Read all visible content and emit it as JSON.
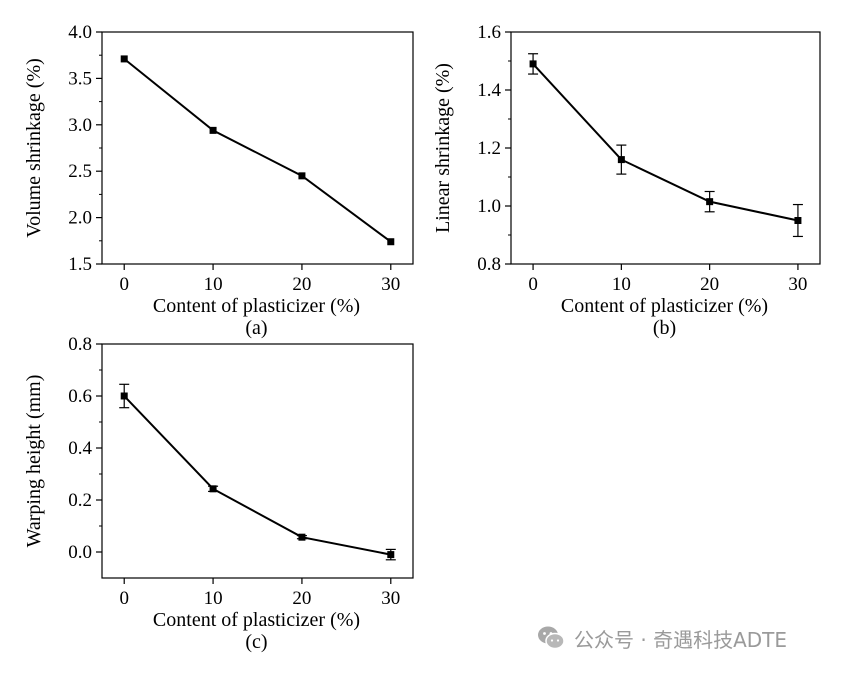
{
  "chart_data": [
    {
      "type": "line",
      "panel_label": "(a)",
      "xlabel": "Content of plasticizer (%)",
      "ylabel": "Volume shrinkage (%)",
      "x": [
        0,
        10,
        20,
        30
      ],
      "y": [
        3.71,
        2.94,
        2.45,
        1.74
      ],
      "err": [
        0,
        0,
        0,
        0
      ],
      "xticks": [
        "0",
        "10",
        "20",
        "30"
      ],
      "yticks": [
        "1.5",
        "2.0",
        "2.5",
        "3.0",
        "3.5",
        "4.0"
      ],
      "xlim": [
        -2.5,
        32.5
      ],
      "ylim": [
        1.5,
        4.0
      ],
      "color": "#000000"
    },
    {
      "type": "line",
      "panel_label": "(b)",
      "xlabel": "Content of plasticizer (%)",
      "ylabel": "Linear shrinkage (%)",
      "x": [
        0,
        10,
        20,
        30
      ],
      "y": [
        1.49,
        1.16,
        1.015,
        0.95
      ],
      "err": [
        0.035,
        0.05,
        0.035,
        0.055
      ],
      "xticks": [
        "0",
        "10",
        "20",
        "30"
      ],
      "yticks": [
        "0.8",
        "1.0",
        "1.2",
        "1.4",
        "1.6"
      ],
      "xlim": [
        -2.5,
        32.5
      ],
      "ylim": [
        0.8,
        1.6
      ],
      "color": "#000000"
    },
    {
      "type": "line",
      "panel_label": "(c)",
      "xlabel": "Content of plasticizer (%)",
      "ylabel": "Warping height (mm)",
      "x": [
        0,
        10,
        20,
        30
      ],
      "y": [
        0.6,
        0.243,
        0.057,
        -0.01
      ],
      "err": [
        0.045,
        0.01,
        0.006,
        0.02
      ],
      "xticks": [
        "0",
        "10",
        "20",
        "30"
      ],
      "yticks": [
        "0.0",
        "0.2",
        "0.4",
        "0.6",
        "0.8"
      ],
      "xlim": [
        -2.5,
        32.5
      ],
      "ylim": [
        -0.1,
        0.8
      ],
      "color": "#000000"
    }
  ],
  "watermark": {
    "icon": "wechat-icon",
    "text": "公众号 · 奇遇科技ADTE"
  }
}
